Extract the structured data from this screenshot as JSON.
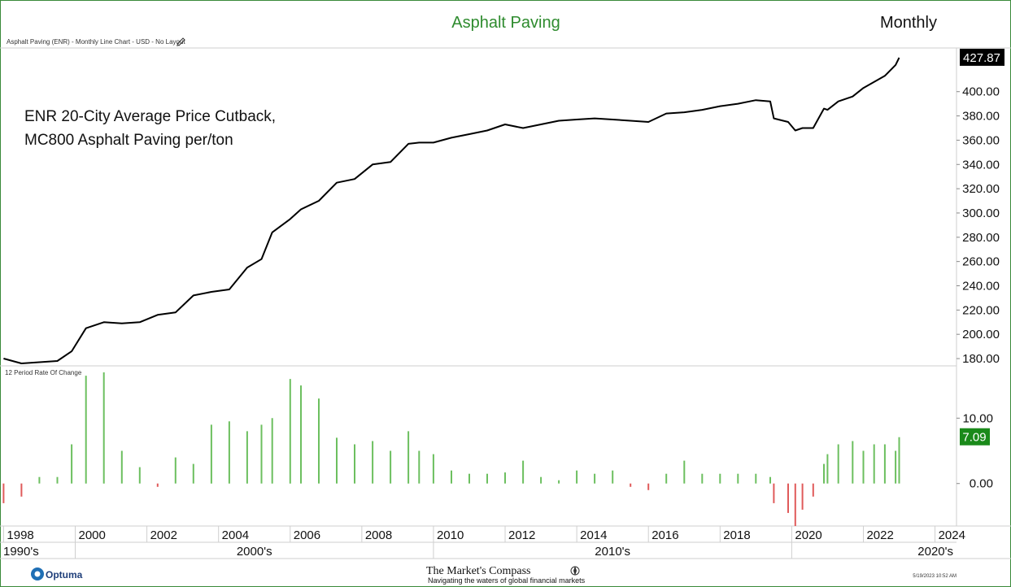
{
  "header": {
    "title": "Asphalt Paving",
    "period": "Monthly",
    "subtitle": "Asphalt Paving (ENR) - Monthly Line Chart - USD - No Layout"
  },
  "annotation": {
    "line1": "ENR 20-City Average Price Cutback,",
    "line2": "MC800 Asphalt Paving per/ton"
  },
  "lower_panel": {
    "label": "12 Period Rate Of Change"
  },
  "footer": {
    "logo": "Optuma",
    "brand": "The Market's Compass",
    "tagline": "Navigating the waters of global financial markets",
    "timestamp": "5/19/2023 10:52 AM"
  },
  "colors": {
    "title": "#2e8b2e",
    "price_line": "#000000",
    "positive_bar": "#6cbf5f",
    "negative_bar": "#e05a5a",
    "last_price_badge": "#000000",
    "roc_badge": "#1a8a1a"
  },
  "chart_data": [
    {
      "type": "line",
      "title": "Asphalt Paving",
      "series": [
        {
          "name": "Asphalt Paving (ENR)",
          "x": [
            1998.0,
            1998.5,
            1999.0,
            1999.5,
            1999.9,
            2000.3,
            2000.8,
            2001.3,
            2001.8,
            2002.3,
            2002.8,
            2003.3,
            2003.8,
            2004.3,
            2004.8,
            2005.2,
            2005.5,
            2006.0,
            2006.3,
            2006.8,
            2007.3,
            2007.8,
            2008.3,
            2008.8,
            2009.3,
            2009.6,
            2010.0,
            2010.5,
            2011.0,
            2011.5,
            2012.0,
            2012.5,
            2013.0,
            2013.5,
            2014.0,
            2014.5,
            2015.0,
            2015.5,
            2016.0,
            2016.5,
            2017.0,
            2017.5,
            2018.0,
            2018.5,
            2019.0,
            2019.4,
            2019.5,
            2019.9,
            2020.1,
            2020.3,
            2020.6,
            2020.9,
            2021.0,
            2021.3,
            2021.7,
            2022.0,
            2022.3,
            2022.6,
            2022.9,
            2023.0
          ],
          "values": [
            180,
            176,
            177,
            178,
            186,
            205,
            210,
            209,
            210,
            216,
            218,
            232,
            235,
            237,
            255,
            262,
            284,
            295,
            303,
            310,
            325,
            328,
            340,
            342,
            357,
            358,
            358,
            362,
            365,
            368,
            373,
            370,
            373,
            376,
            377,
            378,
            377,
            376,
            375,
            382,
            383,
            385,
            388,
            390,
            393,
            392,
            378,
            375,
            368,
            370,
            370,
            386,
            385,
            392,
            396,
            403,
            408,
            413,
            422,
            428
          ]
        }
      ],
      "ylim": [
        174,
        436
      ],
      "yticks": [
        180,
        200,
        220,
        240,
        260,
        280,
        300,
        320,
        340,
        360,
        380,
        400
      ],
      "last_value_label": "427.87",
      "xlim": [
        1997.9,
        2024.6
      ],
      "xticks": [
        "1998",
        "2000",
        "2002",
        "2004",
        "2006",
        "2008",
        "2010",
        "2012",
        "2014",
        "2016",
        "2018",
        "2020",
        "2022",
        "2024"
      ],
      "decades": [
        "1990's",
        "2000's",
        "2010's",
        "2020's"
      ],
      "grid": false
    },
    {
      "type": "bar",
      "title": "12 Period Rate Of Change",
      "x": [
        1998.0,
        1998.5,
        1999.0,
        1999.5,
        1999.9,
        2000.3,
        2000.8,
        2001.3,
        2001.8,
        2002.3,
        2002.8,
        2003.3,
        2003.8,
        2004.3,
        2004.8,
        2005.2,
        2005.5,
        2006.0,
        2006.3,
        2006.8,
        2007.3,
        2007.8,
        2008.3,
        2008.8,
        2009.3,
        2009.6,
        2010.0,
        2010.5,
        2011.0,
        2011.5,
        2012.0,
        2012.5,
        2013.0,
        2013.5,
        2014.0,
        2014.5,
        2015.0,
        2015.5,
        2016.0,
        2016.5,
        2017.0,
        2017.5,
        2018.0,
        2018.5,
        2019.0,
        2019.4,
        2019.5,
        2019.9,
        2020.1,
        2020.3,
        2020.6,
        2020.9,
        2021.0,
        2021.3,
        2021.7,
        2022.0,
        2022.3,
        2022.6,
        2022.9,
        2023.0
      ],
      "values": [
        -3.0,
        -2.0,
        1.0,
        1.0,
        6.0,
        16.5,
        17.0,
        5.0,
        2.5,
        -0.5,
        4.0,
        3.0,
        9.0,
        9.5,
        8.0,
        9.0,
        10.0,
        16.0,
        15.0,
        13.0,
        7.0,
        6.0,
        6.5,
        5.0,
        8.0,
        5.0,
        4.5,
        2.0,
        1.5,
        1.5,
        1.7,
        3.5,
        1.0,
        0.5,
        2.0,
        1.5,
        2.0,
        -0.5,
        -1.0,
        1.5,
        3.5,
        1.5,
        1.5,
        1.5,
        1.5,
        1.0,
        -3.0,
        -4.5,
        -6.5,
        -4.0,
        -2.0,
        3.0,
        4.5,
        6.0,
        6.5,
        5.0,
        6.0,
        6.0,
        5.0,
        7.09
      ],
      "ylim": [
        -6.5,
        18
      ],
      "yticks": [
        0,
        10
      ],
      "last_value_label": "7.09"
    }
  ]
}
